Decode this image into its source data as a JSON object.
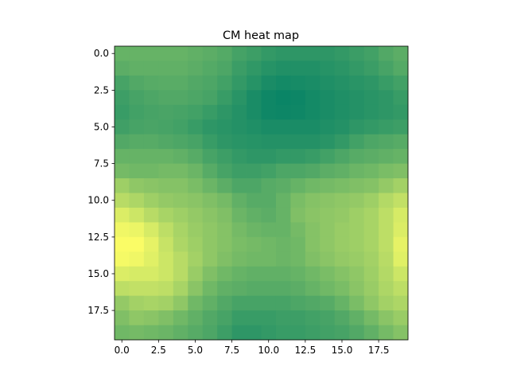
{
  "chart_data": {
    "type": "heatmap",
    "title": "CM heat map",
    "xlabel": "",
    "ylabel": "",
    "colormap": "summer",
    "xlim": [
      -0.5,
      19.5
    ],
    "ylim": [
      19.5,
      -0.5
    ],
    "xticks": [
      "0.0",
      "2.5",
      "5.0",
      "7.5",
      "10.0",
      "12.5",
      "15.0",
      "17.5"
    ],
    "yticks": [
      "0.0",
      "2.5",
      "5.0",
      "7.5",
      "10.0",
      "12.5",
      "15.0",
      "17.5"
    ],
    "vmin": 0,
    "vmax": 1,
    "values": [
      [
        0.4,
        0.4,
        0.4,
        0.4,
        0.4,
        0.38,
        0.36,
        0.33,
        0.27,
        0.24,
        0.2,
        0.18,
        0.18,
        0.18,
        0.18,
        0.2,
        0.23,
        0.26,
        0.32,
        0.36
      ],
      [
        0.36,
        0.38,
        0.38,
        0.38,
        0.38,
        0.36,
        0.33,
        0.3,
        0.23,
        0.19,
        0.15,
        0.13,
        0.13,
        0.13,
        0.15,
        0.17,
        0.2,
        0.23,
        0.28,
        0.33
      ],
      [
        0.28,
        0.32,
        0.34,
        0.35,
        0.35,
        0.32,
        0.3,
        0.26,
        0.2,
        0.15,
        0.1,
        0.08,
        0.09,
        0.1,
        0.12,
        0.14,
        0.16,
        0.18,
        0.22,
        0.26
      ],
      [
        0.24,
        0.28,
        0.3,
        0.32,
        0.32,
        0.3,
        0.28,
        0.22,
        0.16,
        0.1,
        0.06,
        0.04,
        0.05,
        0.08,
        0.1,
        0.12,
        0.14,
        0.16,
        0.18,
        0.22
      ],
      [
        0.22,
        0.26,
        0.28,
        0.29,
        0.28,
        0.26,
        0.22,
        0.18,
        0.14,
        0.1,
        0.06,
        0.05,
        0.06,
        0.08,
        0.1,
        0.12,
        0.14,
        0.16,
        0.18,
        0.2
      ],
      [
        0.25,
        0.28,
        0.29,
        0.28,
        0.26,
        0.22,
        0.18,
        0.16,
        0.14,
        0.12,
        0.1,
        0.1,
        0.1,
        0.1,
        0.12,
        0.14,
        0.18,
        0.2,
        0.22,
        0.24
      ],
      [
        0.32,
        0.34,
        0.34,
        0.32,
        0.3,
        0.28,
        0.22,
        0.18,
        0.16,
        0.15,
        0.14,
        0.14,
        0.14,
        0.14,
        0.16,
        0.2,
        0.26,
        0.3,
        0.32,
        0.34
      ],
      [
        0.4,
        0.4,
        0.4,
        0.4,
        0.38,
        0.34,
        0.28,
        0.24,
        0.2,
        0.18,
        0.18,
        0.2,
        0.2,
        0.22,
        0.26,
        0.3,
        0.34,
        0.36,
        0.38,
        0.4
      ],
      [
        0.46,
        0.44,
        0.44,
        0.46,
        0.46,
        0.42,
        0.34,
        0.28,
        0.24,
        0.24,
        0.26,
        0.3,
        0.3,
        0.32,
        0.36,
        0.38,
        0.42,
        0.44,
        0.48,
        0.5
      ],
      [
        0.62,
        0.56,
        0.54,
        0.52,
        0.52,
        0.48,
        0.42,
        0.36,
        0.3,
        0.3,
        0.34,
        0.36,
        0.4,
        0.44,
        0.46,
        0.48,
        0.5,
        0.52,
        0.58,
        0.64
      ],
      [
        0.72,
        0.68,
        0.62,
        0.58,
        0.56,
        0.54,
        0.5,
        0.46,
        0.38,
        0.34,
        0.34,
        0.4,
        0.48,
        0.52,
        0.54,
        0.56,
        0.58,
        0.62,
        0.7,
        0.76
      ],
      [
        0.86,
        0.8,
        0.72,
        0.66,
        0.62,
        0.58,
        0.54,
        0.5,
        0.42,
        0.38,
        0.36,
        0.4,
        0.5,
        0.54,
        0.56,
        0.58,
        0.62,
        0.66,
        0.74,
        0.84
      ],
      [
        0.94,
        0.92,
        0.84,
        0.74,
        0.66,
        0.6,
        0.56,
        0.52,
        0.46,
        0.42,
        0.4,
        0.4,
        0.46,
        0.52,
        0.56,
        0.6,
        0.62,
        0.66,
        0.74,
        0.86
      ],
      [
        0.98,
        0.98,
        0.9,
        0.78,
        0.68,
        0.62,
        0.56,
        0.52,
        0.48,
        0.46,
        0.44,
        0.42,
        0.44,
        0.52,
        0.56,
        0.6,
        0.62,
        0.66,
        0.74,
        0.9
      ],
      [
        0.96,
        0.94,
        0.88,
        0.8,
        0.72,
        0.64,
        0.56,
        0.5,
        0.46,
        0.44,
        0.44,
        0.42,
        0.44,
        0.5,
        0.54,
        0.58,
        0.6,
        0.64,
        0.72,
        0.88
      ],
      [
        0.86,
        0.84,
        0.84,
        0.8,
        0.72,
        0.6,
        0.5,
        0.44,
        0.4,
        0.38,
        0.38,
        0.38,
        0.4,
        0.44,
        0.48,
        0.52,
        0.56,
        0.62,
        0.7,
        0.8
      ],
      [
        0.74,
        0.76,
        0.76,
        0.74,
        0.66,
        0.54,
        0.44,
        0.38,
        0.36,
        0.34,
        0.34,
        0.34,
        0.36,
        0.4,
        0.44,
        0.48,
        0.54,
        0.6,
        0.68,
        0.74
      ],
      [
        0.58,
        0.64,
        0.66,
        0.64,
        0.56,
        0.44,
        0.38,
        0.32,
        0.28,
        0.28,
        0.28,
        0.28,
        0.3,
        0.32,
        0.34,
        0.4,
        0.48,
        0.56,
        0.64,
        0.68
      ],
      [
        0.5,
        0.56,
        0.54,
        0.5,
        0.44,
        0.38,
        0.32,
        0.28,
        0.22,
        0.22,
        0.22,
        0.24,
        0.24,
        0.26,
        0.28,
        0.32,
        0.38,
        0.46,
        0.54,
        0.6
      ],
      [
        0.44,
        0.46,
        0.44,
        0.42,
        0.38,
        0.34,
        0.3,
        0.24,
        0.18,
        0.18,
        0.2,
        0.22,
        0.22,
        0.24,
        0.26,
        0.28,
        0.32,
        0.38,
        0.46,
        0.52
      ]
    ]
  }
}
